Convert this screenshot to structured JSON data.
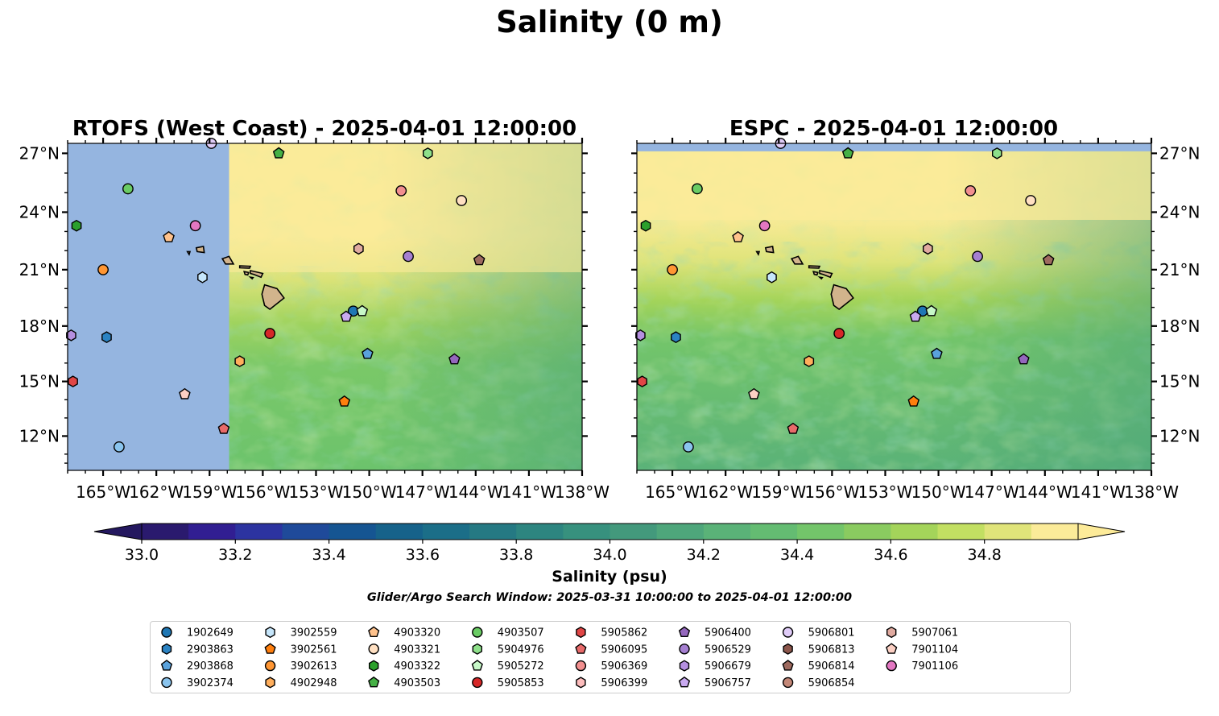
{
  "figure": {
    "title": "Salinity (0 m)",
    "search_window": "Glider/Argo Search Window: 2025-03-31 10:00:00 to 2025-04-01 12:00:00"
  },
  "chart_data": [
    {
      "type": "heatmap",
      "panel": "left",
      "title": "RTOFS (West Coast) - 2025-04-01 12:00:00",
      "xlim": [
        -167,
        -138
      ],
      "ylim": [
        10.1,
        27.5
      ],
      "xticks": [
        -165,
        -162,
        -159,
        -156,
        -153,
        -150,
        -147,
        -144,
        -141,
        -138
      ],
      "xtick_labels": [
        "165°W",
        "162°W",
        "159°W",
        "156°W",
        "153°W",
        "150°W",
        "147°W",
        "144°W",
        "141°W",
        "138°W"
      ],
      "yticks": [
        12,
        15,
        18,
        21,
        24,
        27
      ],
      "ytick_labels": [
        "12°N",
        "15°N",
        "18°N",
        "21°N",
        "24°N",
        "27°N"
      ],
      "ytick_side": "left",
      "no_data_lon_west_of": -157.9,
      "field_note": "Fresher (yellow, >34.9) north of ~21°N, grading to ~34.1-34.4 in south-east"
    },
    {
      "type": "heatmap",
      "panel": "right",
      "title": "ESPC - 2025-04-01 12:00:00",
      "xlim": [
        -167,
        -138
      ],
      "ylim": [
        10.1,
        27.5
      ],
      "xticks": [
        -165,
        -162,
        -159,
        -156,
        -153,
        -150,
        -147,
        -144,
        -141,
        -138
      ],
      "xtick_labels": [
        "165°W",
        "162°W",
        "159°W",
        "156°W",
        "153°W",
        "150°W",
        "147°W",
        "144°W",
        "141°W",
        "138°W"
      ],
      "yticks": [
        12,
        15,
        18,
        21,
        24,
        27
      ],
      "ytick_labels": [
        "12°N",
        "15°N",
        "18°N",
        "21°N",
        "24°N",
        "27°N"
      ],
      "ytick_side": "right",
      "no_data_lat_north_of": 27.1,
      "field_note": "Yellow (>34.9) north of ~22°N, ~34.2-34.4 across southern domain"
    },
    {
      "type": "colorbar",
      "label": "Salinity (psu)",
      "levels": [
        33.0,
        33.1,
        33.2,
        33.3,
        33.4,
        33.5,
        33.6,
        33.7,
        33.8,
        33.9,
        34.0,
        34.1,
        34.2,
        34.3,
        34.4,
        34.5,
        34.6,
        34.7,
        34.8,
        34.9
      ],
      "colors": [
        "#2a1a6e",
        "#311e92",
        "#2c33a0",
        "#1f4a9a",
        "#155592",
        "#16628a",
        "#1b6e88",
        "#257983",
        "#2d8580",
        "#37917e",
        "#43997c",
        "#4ea67b",
        "#5ab278",
        "#64bc72",
        "#73c56a",
        "#8acb60",
        "#a4d45a",
        "#c2df62",
        "#e0e47a",
        "#fbeb99"
      ],
      "extend": "both",
      "under_color": "#24185f",
      "over_color": "#fdeb99",
      "ticks": [
        33.0,
        33.2,
        33.4,
        33.6,
        33.8,
        34.0,
        34.2,
        34.4,
        34.6,
        34.8
      ],
      "tick_labels": [
        "33.0",
        "33.2",
        "33.4",
        "33.6",
        "33.8",
        "34.0",
        "34.2",
        "34.4",
        "34.6",
        "34.8"
      ]
    }
  ],
  "floats": [
    {
      "id": "1902649",
      "marker": "circle",
      "color": "#1f77b4",
      "lon": -150.9,
      "lat": 18.8
    },
    {
      "id": "2903863",
      "marker": "hexagon",
      "color": "#2b83c3",
      "lon": -164.8,
      "lat": 17.4
    },
    {
      "id": "2903868",
      "marker": "pentagon",
      "color": "#5aa2dc",
      "lon": -150.1,
      "lat": 16.5
    },
    {
      "id": "3902374",
      "marker": "circle",
      "color": "#8ac4ee",
      "lon": -164.1,
      "lat": 11.4
    },
    {
      "id": "3902559",
      "marker": "hexagon",
      "color": "#c6e6fb",
      "lon": -159.4,
      "lat": 20.6
    },
    {
      "id": "3902561",
      "marker": "pentagon",
      "color": "#ff7f0e",
      "lon": -151.4,
      "lat": 13.9
    },
    {
      "id": "3902613",
      "marker": "circle",
      "color": "#ff9633",
      "lon": -165.0,
      "lat": 21.0
    },
    {
      "id": "4902948",
      "marker": "hexagon",
      "color": "#ffae5c",
      "lon": -157.3,
      "lat": 16.1
    },
    {
      "id": "4903320",
      "marker": "pentagon",
      "color": "#ffc28c",
      "lon": -161.3,
      "lat": 22.7
    },
    {
      "id": "4903321",
      "marker": "circle",
      "color": "#ffe0c2",
      "lon": -144.8,
      "lat": 24.6
    },
    {
      "id": "4903322",
      "marker": "hexagon",
      "color": "#2ca02c",
      "lon": -166.5,
      "lat": 23.3
    },
    {
      "id": "4903503",
      "marker": "pentagon",
      "color": "#45b045",
      "lon": -155.1,
      "lat": 27.0
    },
    {
      "id": "4903507",
      "marker": "circle",
      "color": "#6acc64",
      "lon": -163.6,
      "lat": 25.2
    },
    {
      "id": "5904976",
      "marker": "hexagon",
      "color": "#8ee08a",
      "lon": -146.7,
      "lat": 27.0
    },
    {
      "id": "5905272",
      "marker": "pentagon",
      "color": "#c7f8c8",
      "lon": -150.4,
      "lat": 18.8
    },
    {
      "id": "5905853",
      "marker": "circle",
      "color": "#d62728",
      "lon": -155.6,
      "lat": 17.6
    },
    {
      "id": "5905862",
      "marker": "hexagon",
      "color": "#e04646",
      "lon": -166.7,
      "lat": 15.0
    },
    {
      "id": "5906095",
      "marker": "pentagon",
      "color": "#e86a6a",
      "lon": -158.2,
      "lat": 12.4
    },
    {
      "id": "5906369",
      "marker": "circle",
      "color": "#f28f8f",
      "lon": -148.2,
      "lat": 25.1
    },
    {
      "id": "5906399",
      "marker": "hexagon",
      "color": "#fcbcbc",
      "lon": null,
      "lat": null
    },
    {
      "id": "5906400",
      "marker": "pentagon",
      "color": "#9467bd",
      "lon": -145.2,
      "lat": 16.2
    },
    {
      "id": "5906529",
      "marker": "circle",
      "color": "#a57fd1",
      "lon": -147.8,
      "lat": 21.7
    },
    {
      "id": "5906679",
      "marker": "hexagon",
      "color": "#b58fe0",
      "lon": -166.8,
      "lat": 17.5
    },
    {
      "id": "5906757",
      "marker": "pentagon",
      "color": "#c9aaf0",
      "lon": -151.3,
      "lat": 18.5
    },
    {
      "id": "5906801",
      "marker": "circle",
      "color": "#e0ccf8",
      "lon": -158.9,
      "lat": 27.5
    },
    {
      "id": "5906813",
      "marker": "hexagon",
      "color": "#8c564b",
      "lon": null,
      "lat": null
    },
    {
      "id": "5906814",
      "marker": "pentagon",
      "color": "#9e6a5f",
      "lon": -143.8,
      "lat": 21.5
    },
    {
      "id": "5906854",
      "marker": "circle",
      "color": "#c48878",
      "lon": null,
      "lat": null
    },
    {
      "id": "5907061",
      "marker": "hexagon",
      "color": "#e0aaa0",
      "lon": -150.6,
      "lat": 22.1
    },
    {
      "id": "7901104",
      "marker": "pentagon",
      "color": "#fcd0c4",
      "lon": -160.4,
      "lat": 14.3
    },
    {
      "id": "7901106",
      "marker": "circle",
      "color": "#e377c2",
      "lon": -159.8,
      "lat": 23.3
    }
  ],
  "colors": {
    "nodata": "#95b5e0",
    "land": "#d2b48c",
    "fresh_yellow": "#fbeb99"
  }
}
